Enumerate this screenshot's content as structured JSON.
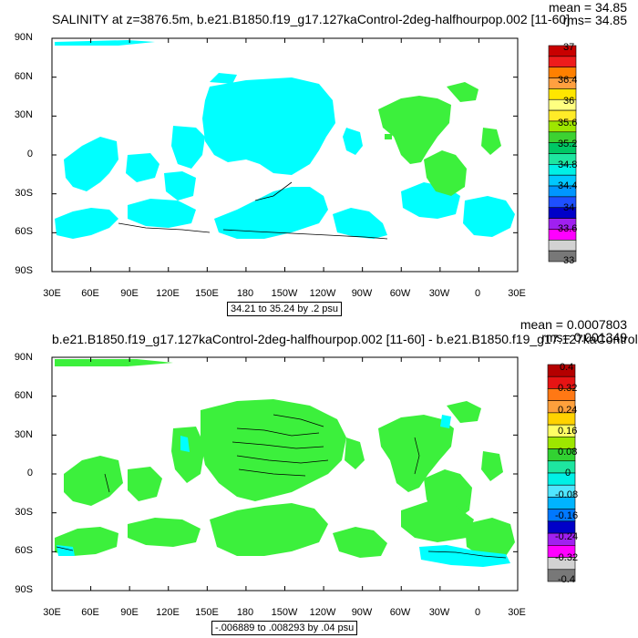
{
  "panels": [
    {
      "title": "SALINITY at z=3876.5m, b.e21.B1850.f19_g17.127kaControl-2deg-halfhourpop.002 [11-60]",
      "mean": "mean = 34.85",
      "rms": "rms= 34.85",
      "contour_info": "34.21 to 35.24 by .2 psu",
      "colorbar": {
        "labels": [
          "37",
          "36.4",
          "36",
          "35.6",
          "35.2",
          "34.8",
          "34.4",
          "34",
          "33.6",
          "33"
        ],
        "colors": [
          "#c80000",
          "#ee1c1c",
          "#ff8000",
          "#ffa040",
          "#ffe600",
          "#ffff80",
          "#ffeb28",
          "#9ee600",
          "#3cd232",
          "#00c864",
          "#1ee6a0",
          "#00f0e6",
          "#00c8ff",
          "#0096ff",
          "#1e50ff",
          "#0000c8",
          "#a020f0",
          "#ff00ff",
          "#d2d2d2",
          "#787878"
        ]
      }
    },
    {
      "title": "b.e21.B1850.f19_g17.127kaControl-2deg-halfhourpop.002 [11-60] - b.e21.B1850.f19_g17.127kaControl",
      "mean": "mean = 0.0007803",
      "rms": "rms= 0.001349",
      "contour_info": "-.006889 to .008293 by .04 psu",
      "colorbar": {
        "labels": [
          "0.4",
          "0.32",
          "0.24",
          "0.16",
          "0.08",
          "0",
          "-0.08",
          "-0.16",
          "-0.24",
          "-0.32",
          "-0.4"
        ],
        "colors": [
          "#b40000",
          "#e61414",
          "#ff7814",
          "#ffa03c",
          "#ffd200",
          "#ffff64",
          "#9ee600",
          "#32d232",
          "#1ee6a0",
          "#00f0e6",
          "#50e6ff",
          "#00b4ff",
          "#0078ff",
          "#0000c8",
          "#a020f0",
          "#ff00ff",
          "#d2d2d2",
          "#787878"
        ]
      }
    }
  ],
  "axes": {
    "y_ticks": [
      "90N",
      "60N",
      "30N",
      "0",
      "30S",
      "60S",
      "90S"
    ],
    "x_ticks": [
      "30E",
      "60E",
      "90E",
      "120E",
      "150E",
      "180",
      "150W",
      "120W",
      "90W",
      "60W",
      "30W",
      "0",
      "30E"
    ]
  },
  "colors": {
    "cyan": "#00ffff",
    "green": "#3cf03c",
    "bright_green": "#20dd20"
  }
}
